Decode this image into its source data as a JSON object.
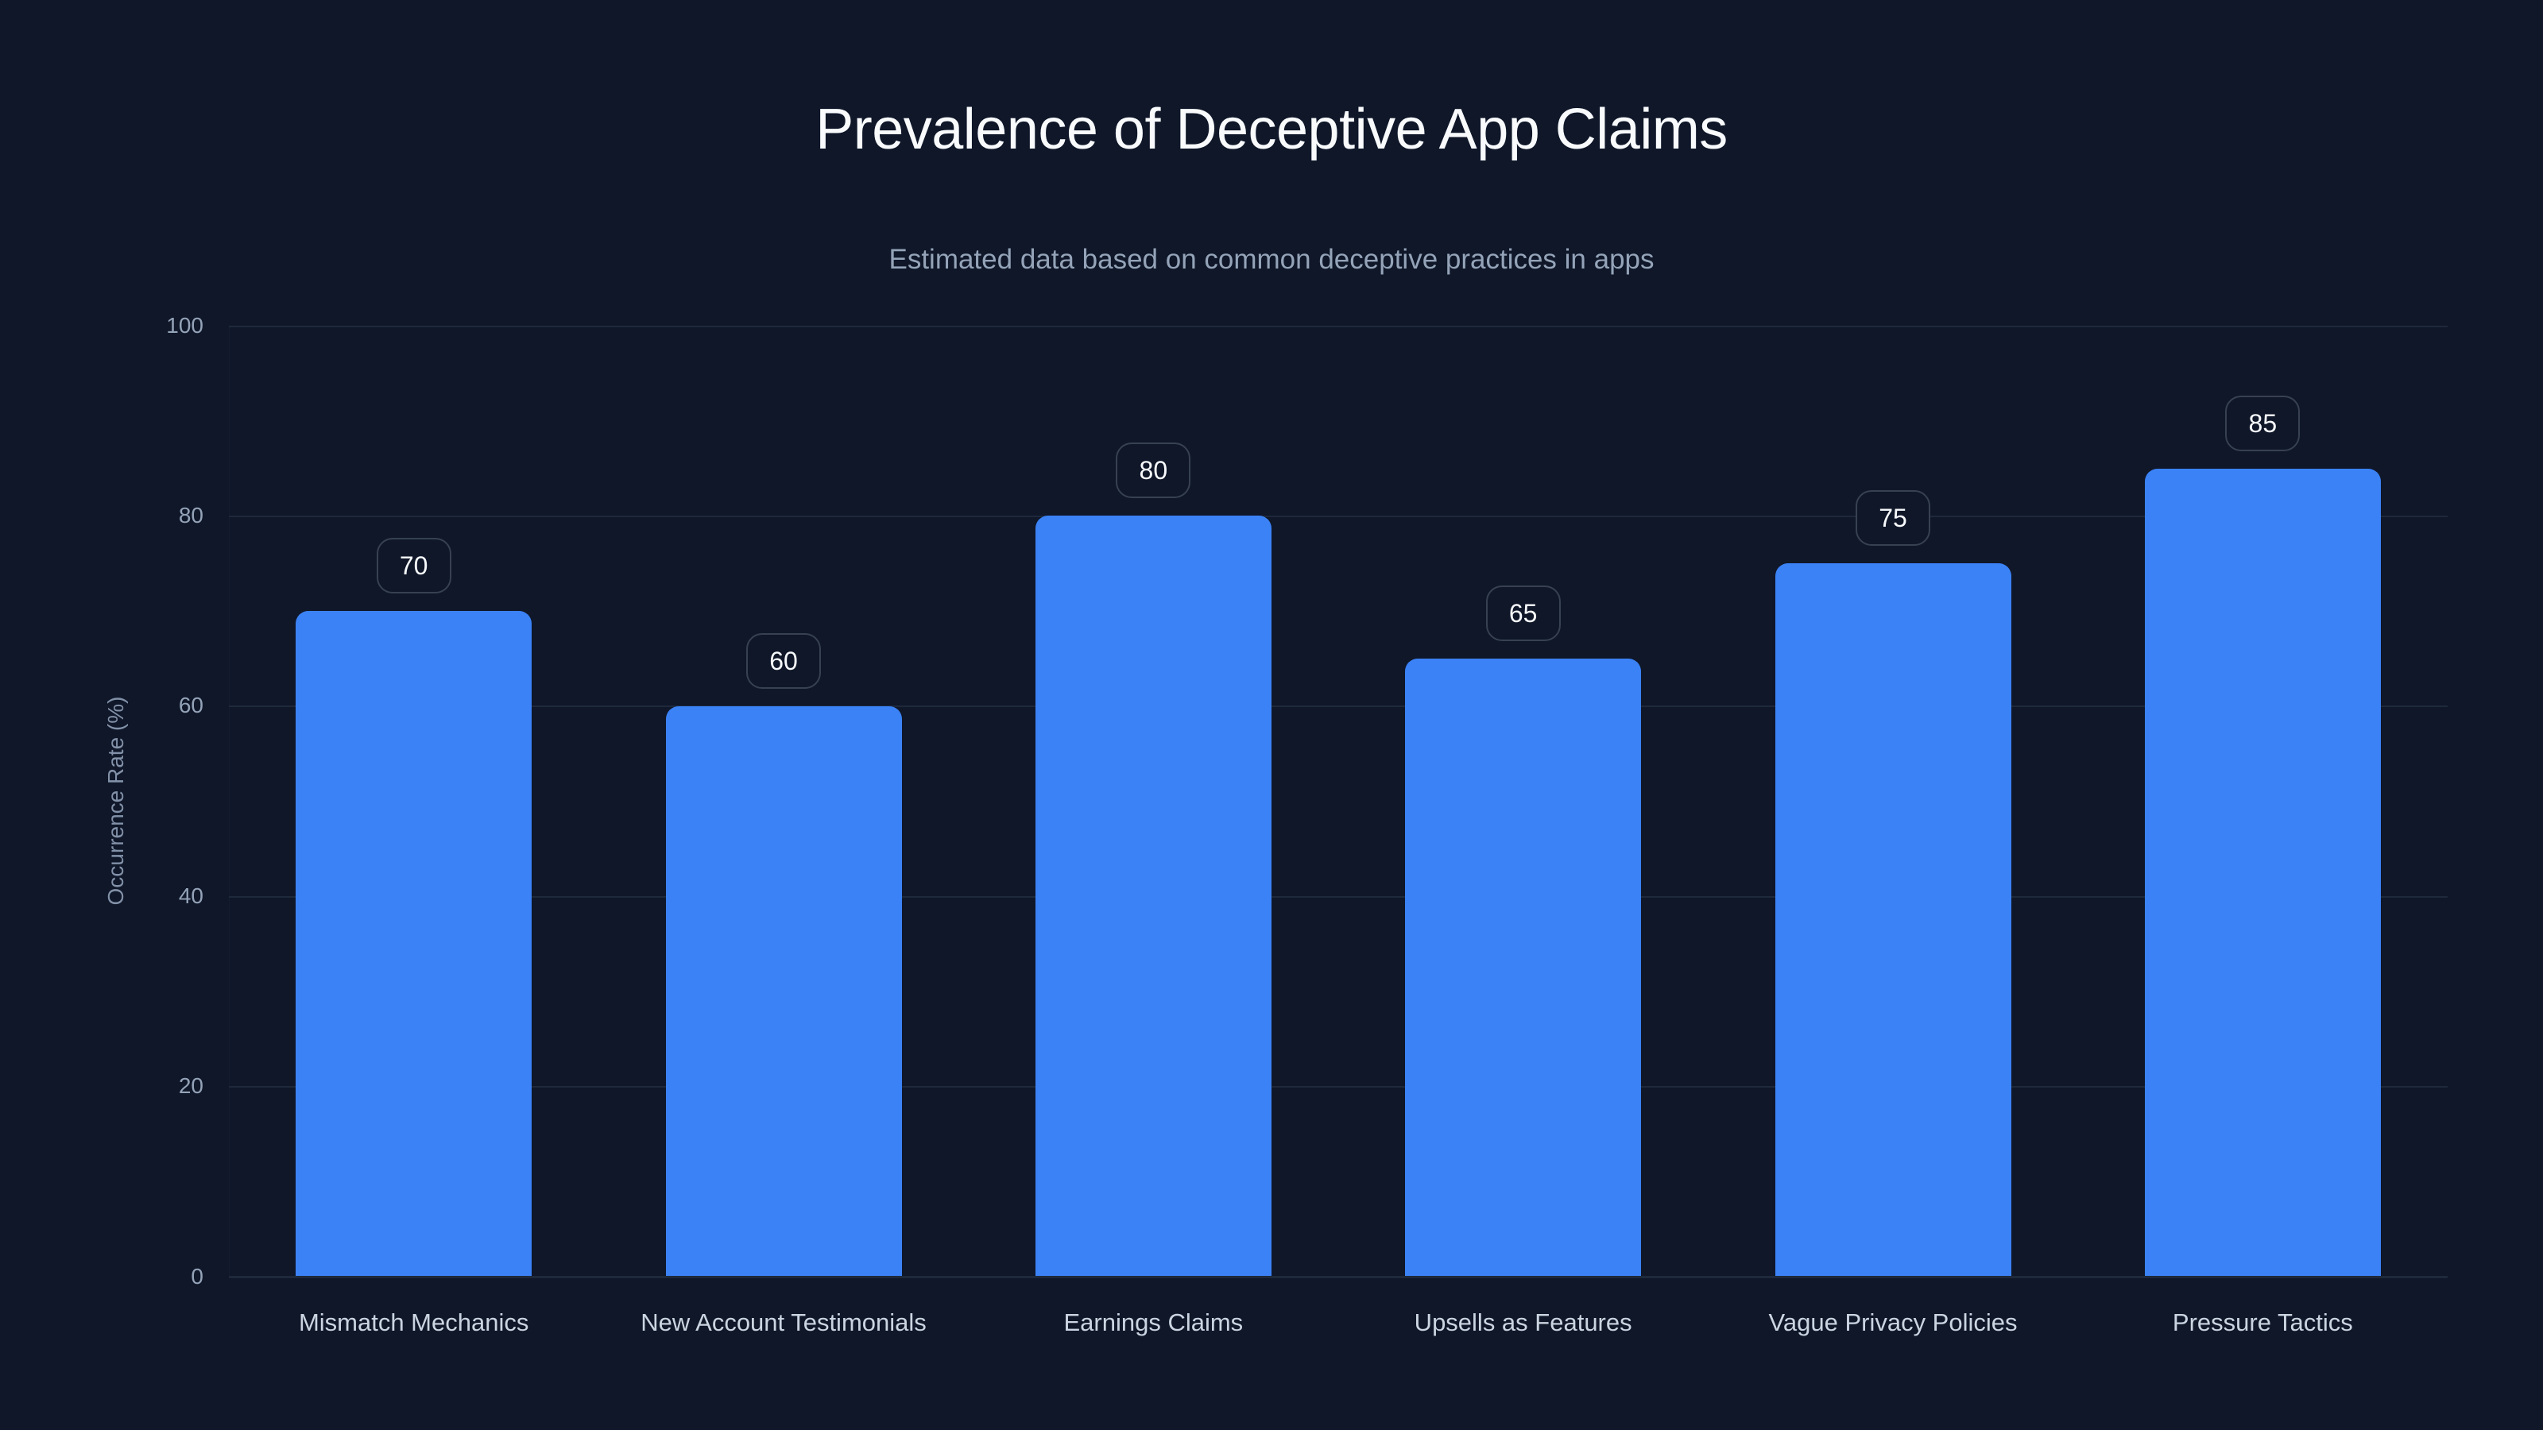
{
  "chart_data": {
    "type": "bar",
    "title": "Prevalence of Deceptive App Claims",
    "subtitle": "Estimated data based on common deceptive practices in apps",
    "xlabel": "",
    "ylabel": "Occurrence Rate (%)",
    "ylim": [
      0,
      100
    ],
    "yticks": [
      "0",
      "20",
      "40",
      "60",
      "80",
      "100"
    ],
    "grid": true,
    "legend": null,
    "categories": [
      "Mismatch Mechanics",
      "New Account Testimonials",
      "Earnings Claims",
      "Upsells as Features",
      "Vague Privacy Policies",
      "Pressure Tactics"
    ],
    "values": [
      70,
      60,
      80,
      65,
      75,
      85
    ],
    "data_labels": [
      "70",
      "60",
      "80",
      "65",
      "75",
      "85"
    ],
    "colors": {
      "background": "#0f1729",
      "bar": "#3b82f6",
      "grid": "#1e293b",
      "title": "#f8fafc",
      "subtitle": "#94a3b8",
      "tick": "#94a3b8",
      "category_label": "#cbd5e1",
      "label_pill_border": "#374151"
    }
  }
}
